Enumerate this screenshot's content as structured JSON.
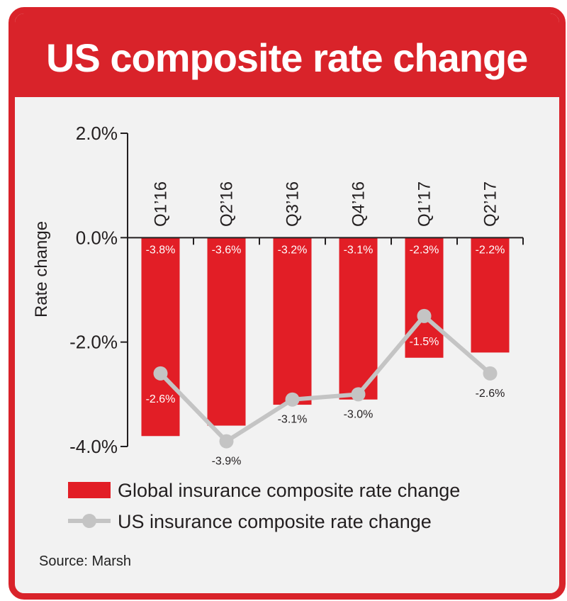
{
  "title": "US composite rate change",
  "source": "Source: Marsh",
  "colors": {
    "frame": "#d9232a",
    "bar": "#e21e26",
    "line": "#c4c4c4",
    "panel": "#f2f2f2"
  },
  "chart_data": {
    "type": "bar",
    "title": "US composite rate change",
    "ylabel": "Rate change",
    "xlabel": "",
    "ylim": [
      -4.0,
      2.0
    ],
    "yticks": [
      2.0,
      0.0,
      -2.0,
      -4.0
    ],
    "ytick_labels": [
      "2.0%",
      "0.0%",
      "-2.0%",
      "-4.0%"
    ],
    "grid": false,
    "legend_placement": "bottom",
    "categories": [
      "Q1’16",
      "Q2’16",
      "Q3’16",
      "Q4’16",
      "Q1’17",
      "Q2’17"
    ],
    "series": [
      {
        "name": "Global insurance composite rate change",
        "type": "bar",
        "values": [
          -3.8,
          -3.6,
          -3.2,
          -3.1,
          -2.3,
          -2.2
        ],
        "labels": [
          "-3.8%",
          "-3.6%",
          "-3.2%",
          "-3.1%",
          "-2.3%",
          "-2.2%"
        ]
      },
      {
        "name": "US insurance composite rate change",
        "type": "line",
        "values": [
          -2.6,
          -3.9,
          -3.1,
          -3.0,
          -1.5,
          -2.6
        ],
        "labels": [
          "-2.6%",
          "-3.9%",
          "-3.1%",
          "-3.0%",
          "-1.5%",
          "-2.6%"
        ]
      }
    ]
  }
}
